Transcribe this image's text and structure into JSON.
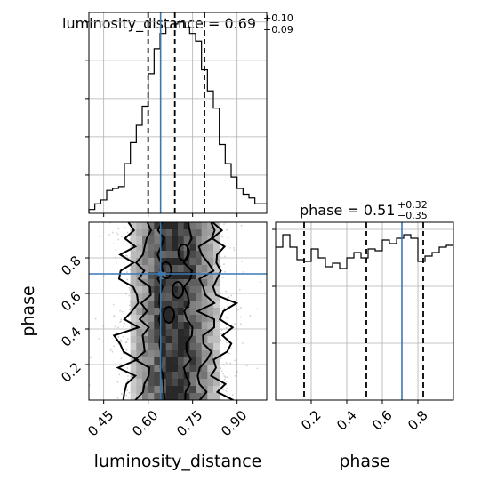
{
  "chart_data": [
    {
      "panel": "luminosity_distance-marginal",
      "type": "histogram",
      "title": "luminosity_distance = 0.69",
      "title_sup": "+0.10",
      "title_sub": "−0.09",
      "bin_edges": [
        0.4,
        0.42,
        0.44,
        0.46,
        0.48,
        0.5,
        0.52,
        0.54,
        0.56,
        0.58,
        0.6,
        0.62,
        0.64,
        0.66,
        0.68,
        0.7,
        0.72,
        0.74,
        0.76,
        0.78,
        0.8,
        0.82,
        0.84,
        0.86,
        0.88,
        0.9,
        0.92,
        0.94,
        0.96,
        0.98,
        1.0
      ],
      "values": [
        0.02,
        0.05,
        0.07,
        0.12,
        0.13,
        0.14,
        0.26,
        0.37,
        0.46,
        0.56,
        0.73,
        0.86,
        0.94,
        0.97,
        0.99,
        1.0,
        0.97,
        0.94,
        0.9,
        0.75,
        0.64,
        0.55,
        0.36,
        0.26,
        0.19,
        0.13,
        0.1,
        0.08,
        0.05,
        0.05
      ],
      "xlim": [
        0.4,
        1.0
      ],
      "ylim": [
        0,
        1.05
      ],
      "quantiles": [
        0.6,
        0.69,
        0.79
      ],
      "truth": 0.642
    },
    {
      "panel": "luminosity_distance-vs-phase",
      "type": "2d-histogram-contour",
      "xlabel": "luminosity_distance",
      "ylabel": "phase",
      "xlim": [
        0.4,
        1.0
      ],
      "ylim": [
        0.0,
        1.0
      ],
      "xticks": [
        "0.45",
        "0.60",
        "0.75",
        "0.90"
      ],
      "xtick_values": [
        0.45,
        0.6,
        0.75,
        0.9
      ],
      "yticks": [
        "0.2",
        "0.4",
        "0.6",
        "0.8"
      ],
      "ytick_values": [
        0.2,
        0.4,
        0.6,
        0.8
      ],
      "truth": [
        0.642,
        0.71
      ],
      "contour_center_curve": [
        [
          0.0,
          0.69
        ],
        [
          0.1,
          0.685
        ],
        [
          0.2,
          0.695
        ],
        [
          0.3,
          0.69
        ],
        [
          0.4,
          0.685
        ],
        [
          0.5,
          0.69
        ],
        [
          0.6,
          0.695
        ],
        [
          0.7,
          0.69
        ],
        [
          0.8,
          0.685
        ],
        [
          0.9,
          0.69
        ],
        [
          1.0,
          0.69
        ]
      ],
      "contour_half_widths": [
        0.045,
        0.105,
        0.165
      ]
    },
    {
      "panel": "phase-marginal",
      "type": "histogram",
      "title": "phase = 0.51",
      "title_sup": "+0.32",
      "title_sub": "−0.35",
      "xlabel": "phase",
      "bin_edges": [
        0.0,
        0.04,
        0.08,
        0.12,
        0.16,
        0.2,
        0.24,
        0.28,
        0.32,
        0.36,
        0.4,
        0.44,
        0.48,
        0.52,
        0.56,
        0.6,
        0.64,
        0.68,
        0.72,
        0.76,
        0.8,
        0.84,
        0.88,
        0.92,
        0.96,
        1.0
      ],
      "values": [
        0.86,
        0.93,
        0.86,
        0.79,
        0.78,
        0.85,
        0.8,
        0.75,
        0.77,
        0.74,
        0.8,
        0.83,
        0.8,
        0.85,
        0.84,
        0.9,
        0.88,
        0.91,
        0.93,
        0.91,
        0.78,
        0.81,
        0.83,
        0.86,
        0.87
      ],
      "xlim": [
        0.0,
        1.0
      ],
      "ylim": [
        0,
        1.0
      ],
      "xticks": [
        "0.2",
        "0.4",
        "0.6",
        "0.8"
      ],
      "xtick_values": [
        0.2,
        0.4,
        0.6,
        0.8
      ],
      "quantiles": [
        0.16,
        0.51,
        0.83
      ],
      "truth": 0.71
    }
  ]
}
